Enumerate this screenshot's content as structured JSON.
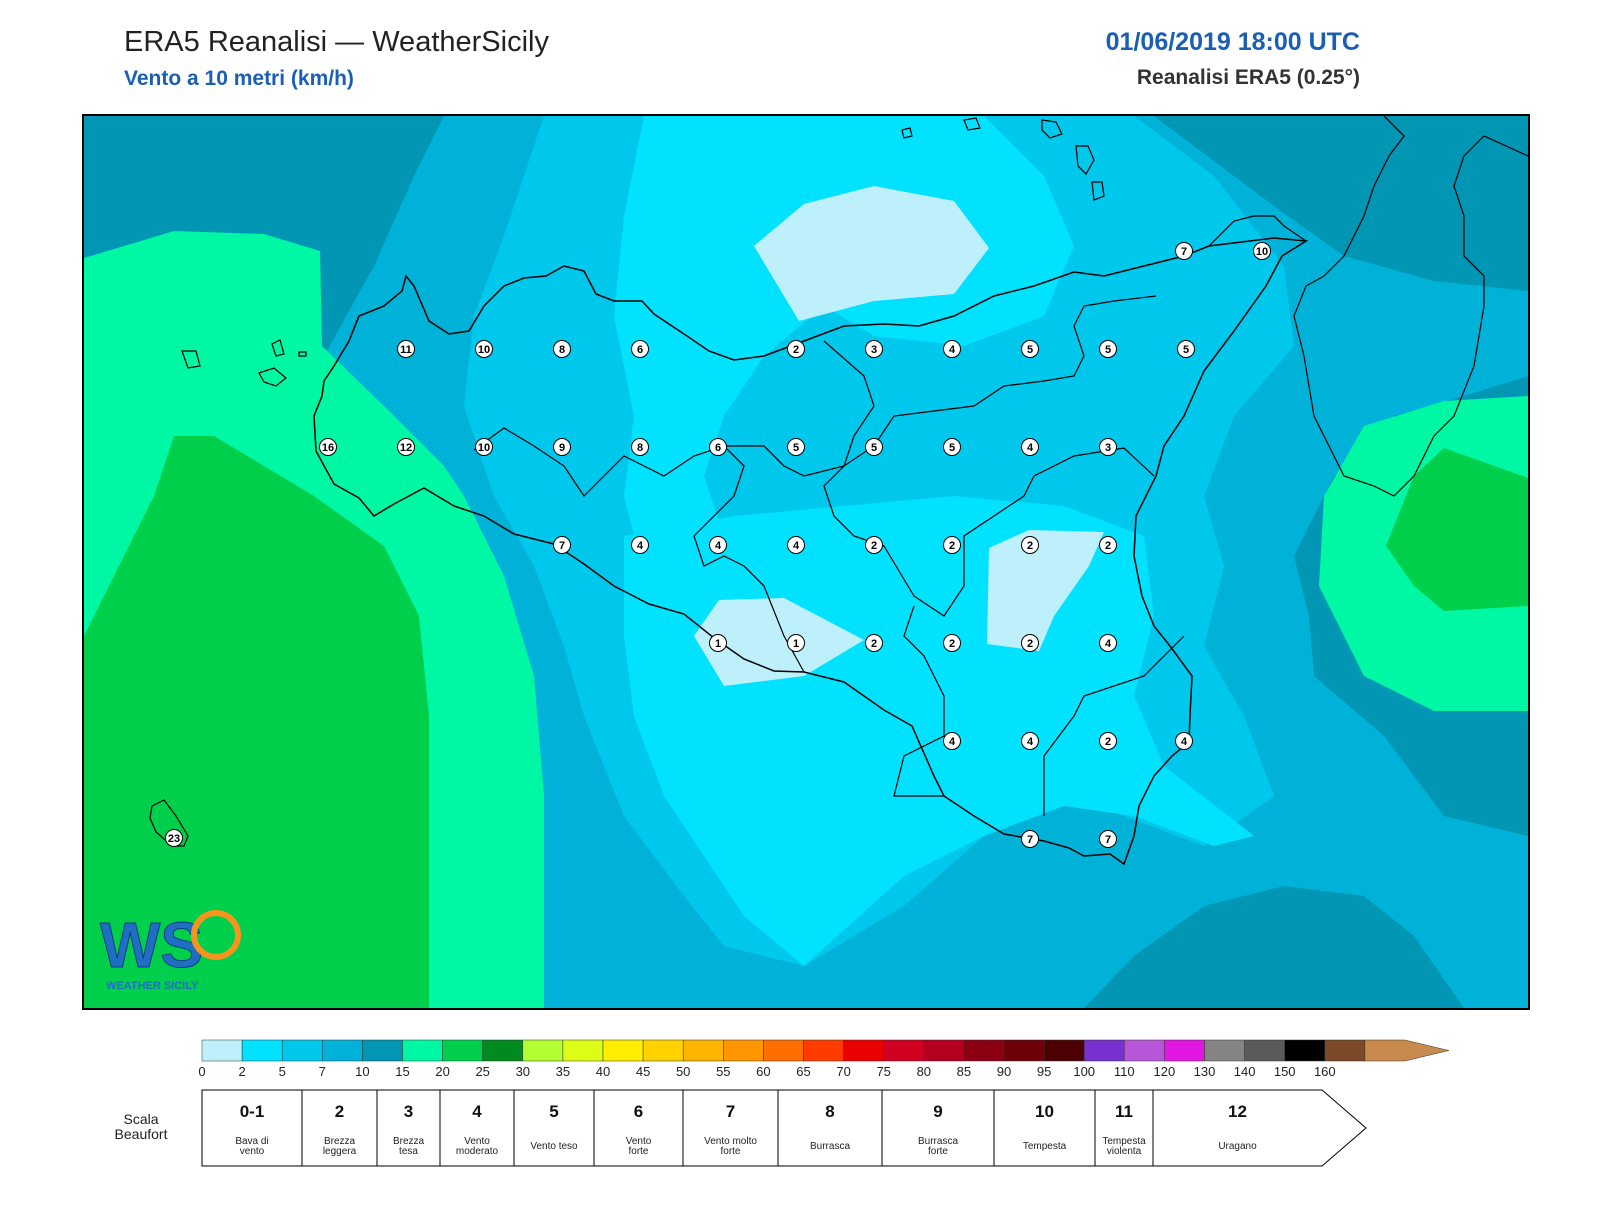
{
  "header": {
    "title": "ERA5 Reanalisi — WeatherSicily",
    "subtitle": "Vento a 10 metri (km/h)",
    "datetime": "01/06/2019 18:00 UTC",
    "source": "Reanalisi ERA5 (0.25°)"
  },
  "map": {
    "region": "Sicily",
    "wind_markers": [
      {
        "value": "7"
      },
      {
        "value": "10"
      },
      {
        "value": "11"
      },
      {
        "value": "10"
      },
      {
        "value": "8"
      },
      {
        "value": "6"
      },
      {
        "value": "2"
      },
      {
        "value": "3"
      },
      {
        "value": "4"
      },
      {
        "value": "5"
      },
      {
        "value": "5"
      },
      {
        "value": "5"
      },
      {
        "value": "16"
      },
      {
        "value": "12"
      },
      {
        "value": "10"
      },
      {
        "value": "9"
      },
      {
        "value": "8"
      },
      {
        "value": "6"
      },
      {
        "value": "5"
      },
      {
        "value": "5"
      },
      {
        "value": "5"
      },
      {
        "value": "4"
      },
      {
        "value": "3"
      },
      {
        "value": "7"
      },
      {
        "value": "4"
      },
      {
        "value": "4"
      },
      {
        "value": "4"
      },
      {
        "value": "2"
      },
      {
        "value": "2"
      },
      {
        "value": "2"
      },
      {
        "value": "2"
      },
      {
        "value": "1"
      },
      {
        "value": "1"
      },
      {
        "value": "2"
      },
      {
        "value": "2"
      },
      {
        "value": "2"
      },
      {
        "value": "4"
      },
      {
        "value": "4"
      },
      {
        "value": "4"
      },
      {
        "value": "2"
      },
      {
        "value": "4"
      },
      {
        "value": "7"
      },
      {
        "value": "7"
      },
      {
        "value": "23"
      }
    ]
  },
  "logo": {
    "text": "WS",
    "caption": "WEATHER SICILY"
  },
  "colorbar": {
    "colors": [
      "#bdf0fb",
      "#00e2ff",
      "#00c8ec",
      "#00b2d8",
      "#0096b4",
      "#00f7a4",
      "#00cf4c",
      "#008a20",
      "#b2fe32",
      "#dbfe14",
      "#ffee00",
      "#ffd200",
      "#ffb400",
      "#ff9600",
      "#ff6e00",
      "#ff3c00",
      "#ea0000",
      "#cf0020",
      "#b4001e",
      "#8a0012",
      "#6e0008",
      "#4c0004",
      "#7830d0",
      "#b656d8",
      "#e018e2",
      "#848484",
      "#5a5a5a",
      "#000000",
      "#7c4a28",
      "#c98a4e"
    ],
    "ticks": [
      "0",
      "2",
      "5",
      "7",
      "10",
      "15",
      "20",
      "25",
      "30",
      "35",
      "40",
      "45",
      "50",
      "55",
      "60",
      "65",
      "70",
      "75",
      "80",
      "85",
      "90",
      "95",
      "100",
      "110",
      "120",
      "130",
      "140",
      "150",
      "160"
    ]
  },
  "beaufort": {
    "title_line1": "Scala",
    "title_line2": "Beaufort",
    "forces": [
      {
        "num": "0-1",
        "desc1": "Bava di",
        "desc2": "vento"
      },
      {
        "num": "2",
        "desc1": "Brezza",
        "desc2": "leggera"
      },
      {
        "num": "3",
        "desc1": "Brezza",
        "desc2": "tesa"
      },
      {
        "num": "4",
        "desc1": "Vento",
        "desc2": "moderato"
      },
      {
        "num": "5",
        "desc1": "Vento teso",
        "desc2": ""
      },
      {
        "num": "6",
        "desc1": "Vento",
        "desc2": "forte"
      },
      {
        "num": "7",
        "desc1": "Vento molto",
        "desc2": "forte"
      },
      {
        "num": "8",
        "desc1": "Burrasca",
        "desc2": ""
      },
      {
        "num": "9",
        "desc1": "Burrasca",
        "desc2": "forte"
      },
      {
        "num": "10",
        "desc1": "Tempesta",
        "desc2": ""
      },
      {
        "num": "11",
        "desc1": "Tempesta",
        "desc2": "violenta"
      },
      {
        "num": "12",
        "desc1": "Uragano",
        "desc2": ""
      }
    ]
  }
}
